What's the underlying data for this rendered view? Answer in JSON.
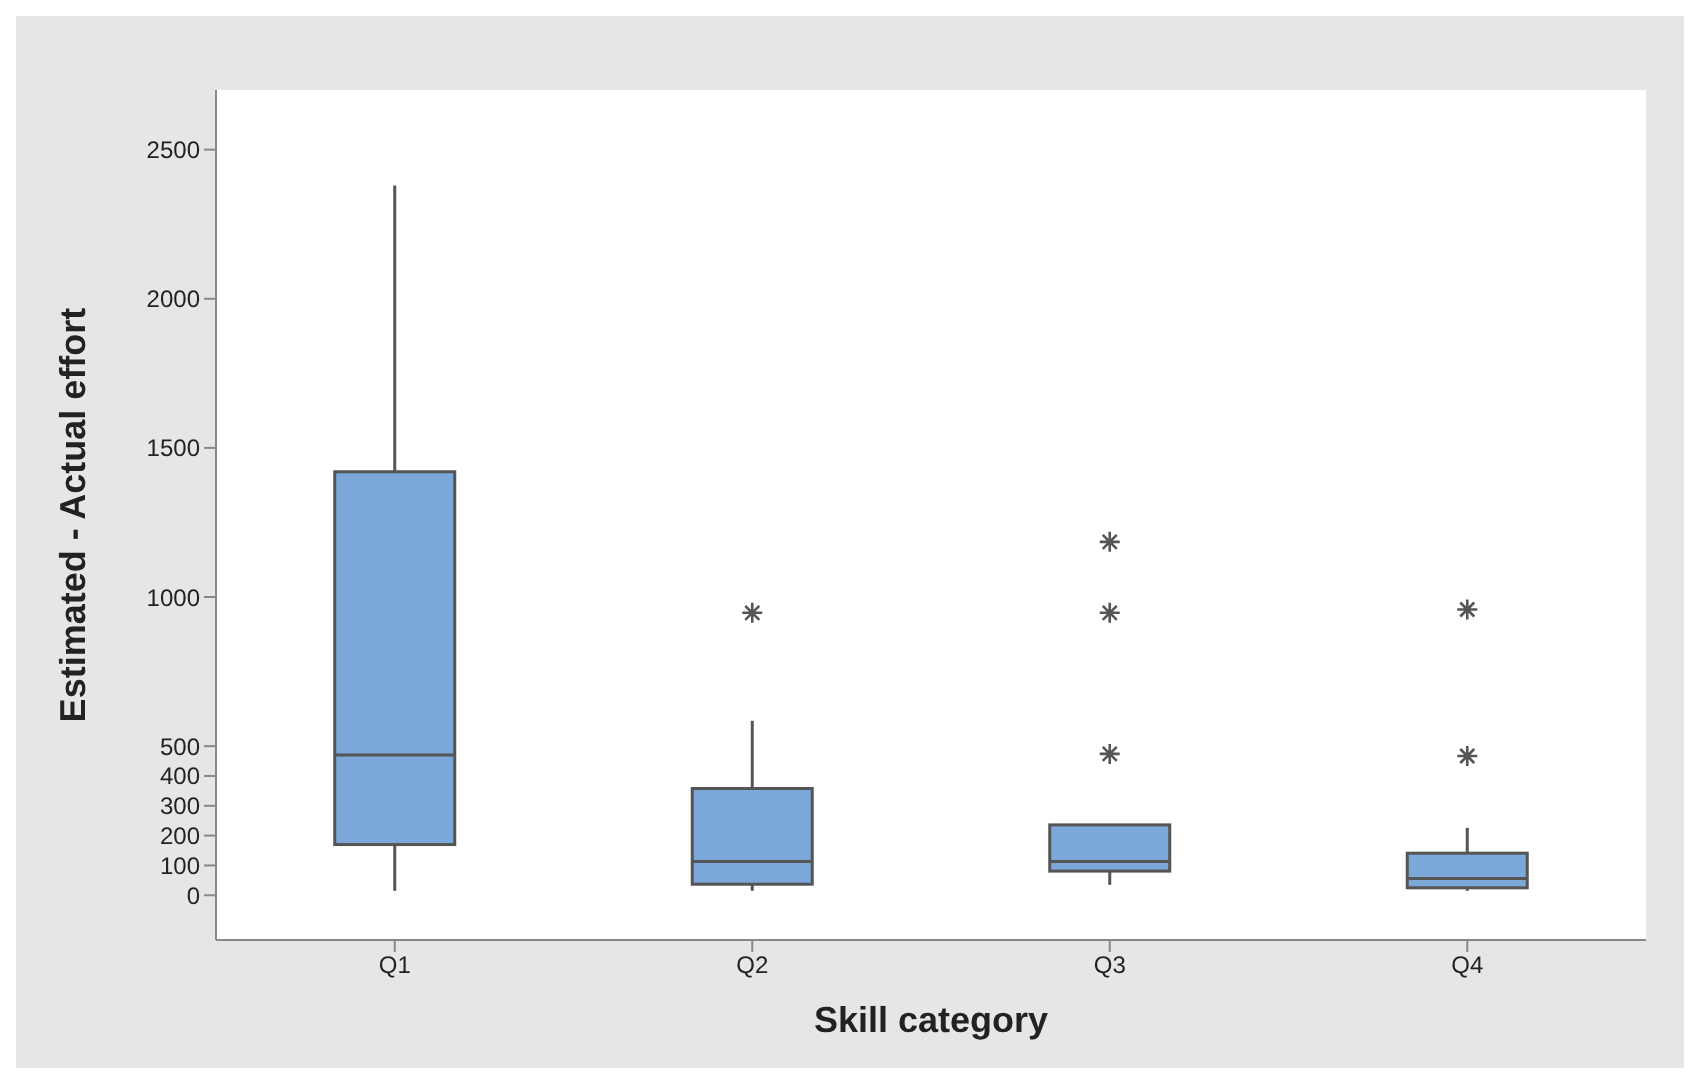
{
  "chart_data": {
    "type": "box",
    "xlabel": "Skill category",
    "ylabel": "Estimated - Actual effort",
    "categories": [
      "Q1",
      "Q2",
      "Q3",
      "Q4"
    ],
    "color": "#7ba7d9",
    "boxes": [
      {
        "low": 15,
        "q1": 170,
        "median": 470,
        "q3": 1420,
        "high": 2380
      },
      {
        "low": 15,
        "q1": 37,
        "median": 113,
        "q3": 358,
        "high": 585,
        "outliers": [
          947
        ]
      },
      {
        "low": 35,
        "q1": 81,
        "median": 113,
        "q3": 236,
        "high": 236,
        "outliers": [
          474,
          947,
          1185
        ]
      },
      {
        "low": 15,
        "q1": 25,
        "median": 56,
        "q3": 141,
        "high": 226,
        "outliers": [
          467,
          958
        ]
      }
    ],
    "ylim": [
      -150,
      2700
    ],
    "yticks": [
      0,
      100,
      200,
      300,
      400,
      500,
      1000,
      1500,
      2000,
      2500
    ]
  }
}
